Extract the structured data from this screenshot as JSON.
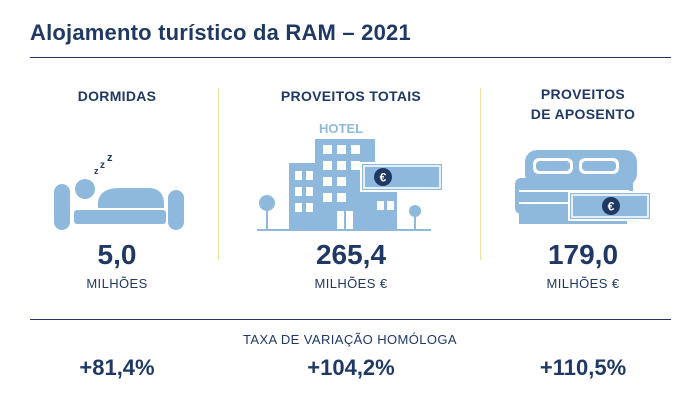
{
  "title": "Alojamento turístico da RAM – 2021",
  "columns": [
    {
      "heading": "DORMIDAS",
      "value": "5,0",
      "unit": "MILHÕES"
    },
    {
      "heading": "PROVEITOS TOTAIS",
      "value": "265,4",
      "unit": "MILHÕES €"
    },
    {
      "heading_line1": "PROVEITOS",
      "heading_line2": "DE APOSENTO",
      "value": "179,0",
      "unit": "MILHÕES €"
    }
  ],
  "icons": {
    "hotel_sign": "HOTEL",
    "euro_symbol": "€"
  },
  "rate_caption": "TAXA DE VARIAÇÃO HOMÓLOGA",
  "rates": [
    "+81,4%",
    "+104,2%",
    "+110,5%"
  ],
  "colors": {
    "navy": "#1f3864",
    "icon_blue": "#8fb9dc",
    "separator_gold": "#f1dfa0"
  }
}
